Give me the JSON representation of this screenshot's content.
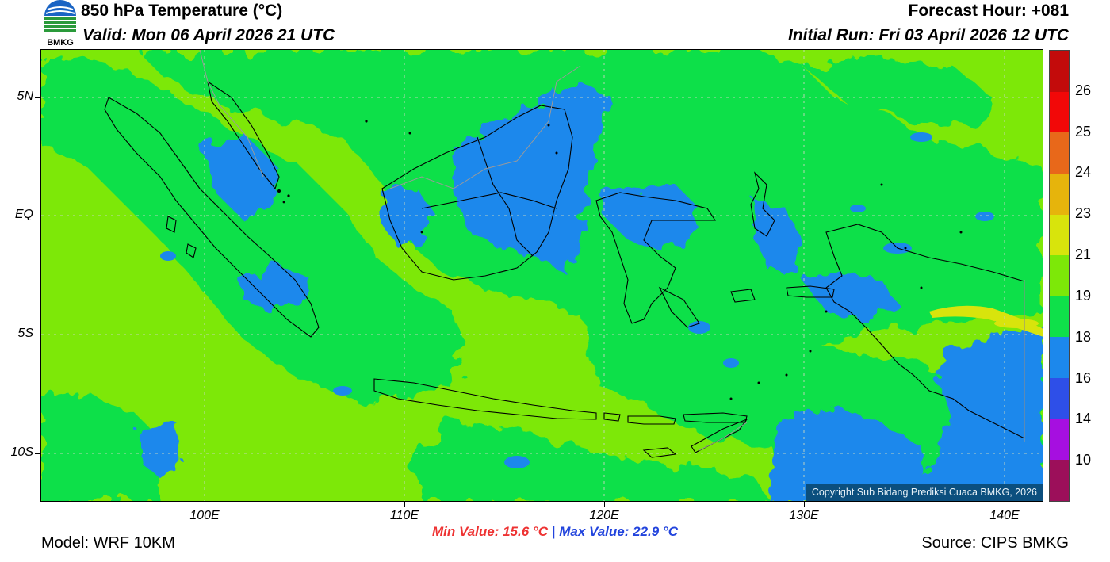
{
  "header": {
    "title": "850 hPa Temperature (°C)",
    "valid": "Valid: Mon 06 April 2026 21 UTC",
    "forecast_hour": "Forecast Hour: +081",
    "initial_run": "Initial Run: Fri 03 April 2026 12 UTC",
    "logo_text": "BMKG"
  },
  "map": {
    "region": "Indonesia",
    "lon_range": [
      92,
      142
    ],
    "lat_range": [
      -12,
      7
    ],
    "latitude_labels": [
      "5N",
      "EQ",
      "5S",
      "10S"
    ],
    "latitude_values": [
      5,
      0,
      -5,
      -10
    ],
    "longitude_labels": [
      "100E",
      "110E",
      "120E",
      "130E",
      "140E"
    ],
    "longitude_values": [
      100,
      110,
      120,
      130,
      140
    ],
    "copyright": "Copyright Sub Bidang Prediksi Cuaca BMKG, 2026",
    "gridlines": true
  },
  "colorbar": {
    "labels": [
      "10",
      "14",
      "16",
      "18",
      "19",
      "21",
      "23",
      "24",
      "25",
      "26"
    ],
    "colors": [
      "#9c0f5a",
      "#a60fe0",
      "#2e4fe8",
      "#1c88ec",
      "#0fe04a",
      "#7de808",
      "#d8e40c",
      "#e6b40c",
      "#e8681a",
      "#f20808",
      "#c30b0b"
    ]
  },
  "stats": {
    "min": "Min Value: 15.6 °C",
    "separator": "|",
    "max": "Max Value: 22.9 °C"
  },
  "footer": {
    "model": "Model: WRF 10KM",
    "source": "Source: CIPS BMKG"
  },
  "palette": {
    "light_green": "#7de808",
    "green": "#0fe04a",
    "blue": "#1c88ec",
    "yellow": "#d8e40c"
  }
}
